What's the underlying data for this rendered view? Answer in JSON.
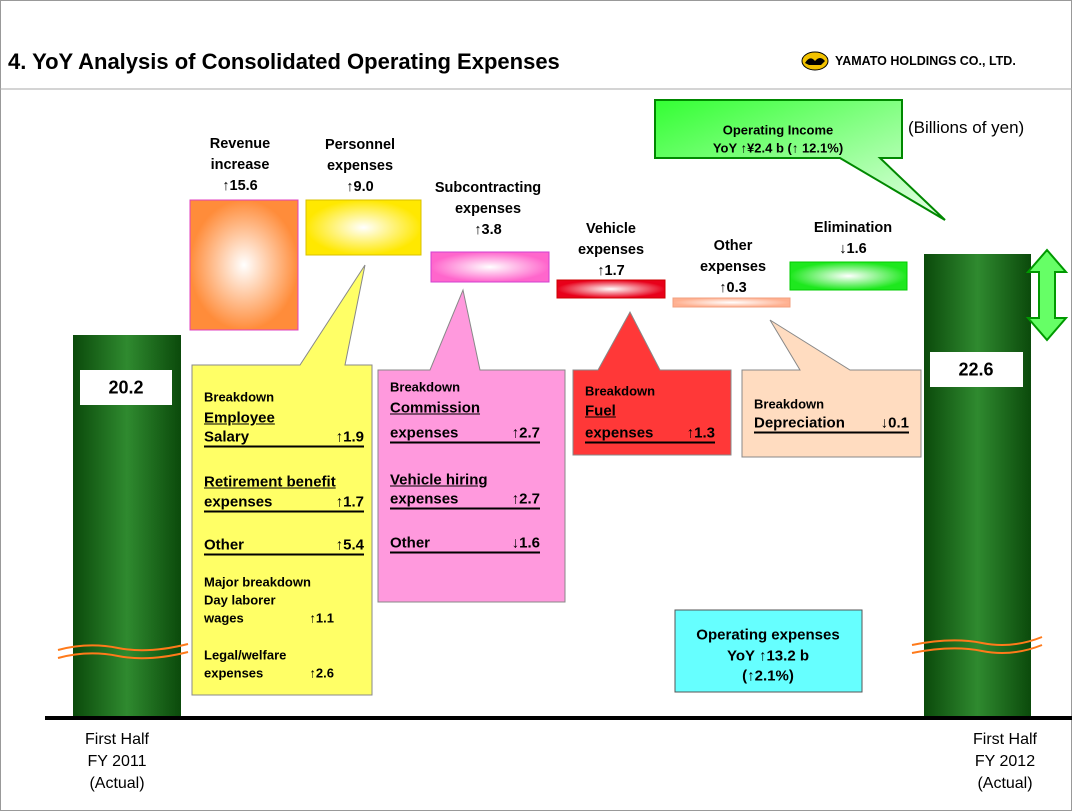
{
  "header": {
    "title": "4. YoY Analysis of Consolidated Operating Expenses",
    "company": "YAMATO HOLDINGS CO., LTD."
  },
  "unit": "(Billions of yen)",
  "bars": [
    {
      "value": "20.2",
      "label": [
        "First Half",
        "FY 2011",
        "(Actual)"
      ]
    },
    {
      "value": "22.6",
      "label": [
        "First Half",
        "FY 2012",
        "(Actual)"
      ]
    }
  ],
  "steps": [
    {
      "label": [
        "Revenue",
        "increase"
      ],
      "change": "↑15.6"
    },
    {
      "label": [
        "Personnel",
        "expenses"
      ],
      "change": "↑9.0"
    },
    {
      "label": [
        "Subcontracting",
        "expenses"
      ],
      "change": "↑3.8"
    },
    {
      "label": [
        "Vehicle",
        "expenses"
      ],
      "change": "↑1.7"
    },
    {
      "label": [
        "Other",
        "expenses"
      ],
      "change": "↑0.3"
    },
    {
      "label": [
        "Elimination"
      ],
      "change": "↓1.6"
    }
  ],
  "callouts": [
    {
      "title": "Breakdown",
      "items": [
        {
          "name": [
            "Employee",
            "Salary"
          ],
          "change": "↑1.9"
        },
        {
          "name": [
            "Retirement benefit",
            "expenses"
          ],
          "change": "↑1.7"
        },
        {
          "name": [
            "Other"
          ],
          "change": "↑5.4"
        }
      ],
      "subtitle": "Major breakdown",
      "subitems": [
        {
          "name": [
            "Day laborer",
            "wages"
          ],
          "change": "↑1.1"
        },
        {
          "name": [
            "Legal/welfare",
            "expenses"
          ],
          "change": "↑2.6"
        }
      ]
    },
    {
      "title": "Breakdown",
      "items": [
        {
          "name": [
            "Commission",
            "expenses"
          ],
          "change": "↑2.7"
        },
        {
          "name": [
            "Vehicle hiring",
            "expenses"
          ],
          "change": "↑2.7"
        },
        {
          "name": [
            "Other"
          ],
          "change": "↓1.6"
        }
      ]
    },
    {
      "title": "Breakdown",
      "items": [
        {
          "name": [
            "Fuel",
            "expenses"
          ],
          "change": "↑1.3"
        }
      ]
    },
    {
      "title": "Breakdown",
      "items": [
        {
          "name": [
            "Depreciation"
          ],
          "change": "↓0.1"
        }
      ]
    }
  ],
  "operating_income": [
    "Operating Income",
    "YoY ↑¥2.4 b (↑ 12.1%)"
  ],
  "operating_expenses": [
    "Operating expenses",
    "YoY ↑13.2 b",
    "(↑2.1%)"
  ]
}
